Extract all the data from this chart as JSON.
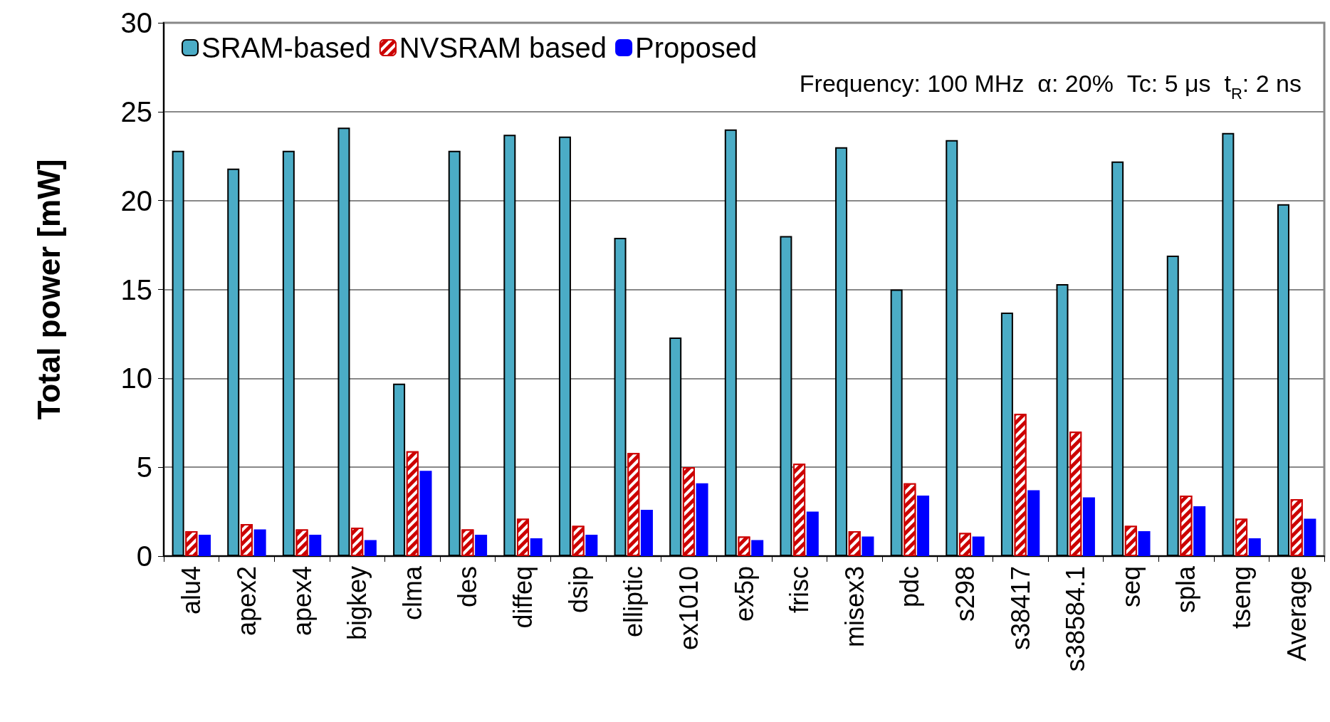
{
  "chart_data": {
    "type": "bar",
    "ylabel": "Total power [mW]",
    "categories": [
      "alu4",
      "apex2",
      "apex4",
      "bigkey",
      "clma",
      "des",
      "diffeq",
      "dsip",
      "elliptic",
      "ex1010",
      "ex5p",
      "frisc",
      "misex3",
      "pdc",
      "s298",
      "s38417",
      "s38584.1",
      "seq",
      "spla",
      "tseng",
      "Average"
    ],
    "series": [
      {
        "name": "SRAM-based",
        "color": "#4bacc6",
        "values": [
          22.8,
          21.8,
          22.8,
          24.1,
          9.7,
          22.8,
          23.7,
          23.6,
          17.9,
          12.3,
          24.0,
          18.0,
          23.0,
          15.0,
          23.4,
          13.7,
          15.3,
          22.2,
          16.9,
          23.8,
          19.8
        ]
      },
      {
        "name": "NVSRAM based",
        "color": "#cc0000",
        "values": [
          1.4,
          1.8,
          1.5,
          1.6,
          5.9,
          1.5,
          2.1,
          1.7,
          5.8,
          5.0,
          1.1,
          5.2,
          1.4,
          4.1,
          1.3,
          8.0,
          7.0,
          1.7,
          3.4,
          2.1,
          3.2
        ]
      },
      {
        "name": "Proposed",
        "color": "#0000ff",
        "values": [
          1.2,
          1.5,
          1.2,
          0.9,
          4.8,
          1.2,
          1.0,
          1.2,
          2.6,
          4.1,
          0.9,
          2.5,
          1.1,
          3.4,
          1.1,
          3.7,
          3.3,
          1.4,
          2.8,
          1.0,
          2.1
        ]
      }
    ],
    "ylim": [
      0,
      30
    ],
    "yticks": [
      0,
      5,
      10,
      15,
      20,
      25,
      30
    ],
    "grid": "y",
    "legend": "top left",
    "annotations": [
      "Frequency: 100 MHz  α: 20%  Tc: 5 μs  t$_{R}$: 2 ns"
    ]
  }
}
